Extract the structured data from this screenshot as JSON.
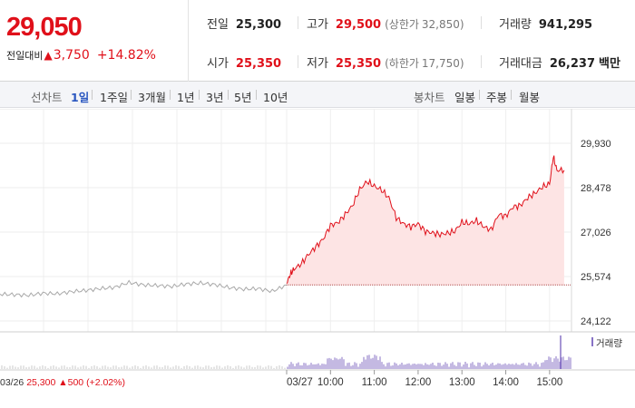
{
  "summary": {
    "price": "29,050",
    "change_label": "전일대비",
    "change_arrow": "▲",
    "change_value": "3,750",
    "change_pct": "+14.82%",
    "prev_close_label": "전일",
    "prev_close": "25,300",
    "open_label": "시가",
    "open": "25,350",
    "high_label": "고가",
    "high": "29,500",
    "upper_limit_label": "(상한가",
    "upper_limit": "32,850)",
    "low_label": "저가",
    "low": "25,350",
    "lower_limit_label": "(하한가",
    "lower_limit": "17,750)",
    "volume_label": "거래량",
    "volume": "941,295",
    "trade_value_label": "거래대금",
    "trade_value": "26,237",
    "trade_value_unit": "백만"
  },
  "toolbar": {
    "line_chart_label": "선차트",
    "line_ranges": [
      "1일",
      "1주일",
      "3개월",
      "1년",
      "3년",
      "5년",
      "10년"
    ],
    "active_range": "1일",
    "candle_chart_label": "봉차트",
    "candle_ranges": [
      "일봉",
      "주봉",
      "월봉"
    ]
  },
  "chart_data": {
    "type": "line",
    "y_ticks": [
      "29,930",
      "28,478",
      "27,026",
      "25,574",
      "24,122"
    ],
    "ylim": [
      24122,
      29930
    ],
    "prev_close": 25300,
    "prev_day": {
      "date": "03/26",
      "close": "25,300",
      "change_arrow": "▲",
      "change": "500",
      "change_pct": "(+2.02%)",
      "x": [
        0,
        0.05,
        0.1,
        0.15,
        0.2,
        0.25,
        0.3,
        0.35,
        0.4,
        0.45,
        0.5,
        0.55,
        0.6,
        0.65,
        0.7,
        0.75,
        0.8,
        0.85,
        0.9,
        0.95,
        1.0
      ],
      "y": [
        25000,
        24980,
        24960,
        25030,
        25010,
        25080,
        25120,
        25180,
        25220,
        25380,
        25300,
        25280,
        25250,
        25330,
        25360,
        25310,
        25210,
        25160,
        25180,
        25090,
        25300
      ]
    },
    "today": {
      "date": "03/27",
      "x_ticks": [
        "10:00",
        "11:00",
        "12:00",
        "13:00",
        "14:00",
        "15:00"
      ],
      "x": [
        "09:00",
        "09:05",
        "09:10",
        "09:20",
        "09:30",
        "09:40",
        "09:50",
        "10:00",
        "10:10",
        "10:20",
        "10:30",
        "10:40",
        "10:50",
        "11:00",
        "11:10",
        "11:20",
        "11:30",
        "11:40",
        "11:50",
        "12:00",
        "12:10",
        "12:20",
        "12:30",
        "12:40",
        "12:50",
        "13:00",
        "13:10",
        "13:20",
        "13:30",
        "13:40",
        "13:50",
        "14:00",
        "14:10",
        "14:20",
        "14:30",
        "14:40",
        "14:50",
        "15:00",
        "15:05",
        "15:10",
        "15:20"
      ],
      "y": [
        25350,
        25650,
        25820,
        25990,
        26300,
        26550,
        26800,
        27250,
        27330,
        27600,
        27890,
        28420,
        28680,
        28530,
        28400,
        28150,
        27500,
        27300,
        27200,
        27300,
        27050,
        27000,
        26950,
        26990,
        27050,
        27350,
        27300,
        27400,
        27200,
        27100,
        27600,
        27550,
        27850,
        27900,
        28150,
        28300,
        28500,
        28600,
        29500,
        29050,
        29050
      ]
    },
    "volume_label": "거래량"
  }
}
